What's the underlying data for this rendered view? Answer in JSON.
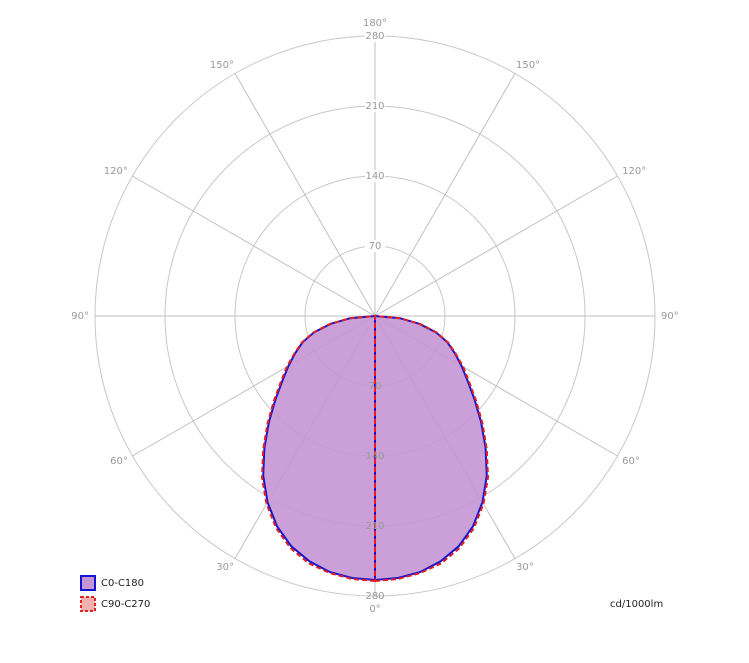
{
  "chart_data": {
    "type": "polar",
    "unit": "cd/1000lm",
    "rlim": [
      0,
      280
    ],
    "rticks": [
      70,
      140,
      210,
      280
    ],
    "angle_ticks": [
      {
        "value": 0,
        "label": "0°"
      },
      {
        "value": 30,
        "label": "30°"
      },
      {
        "value": 60,
        "label": "60°"
      },
      {
        "value": 90,
        "label": "90°"
      },
      {
        "value": 120,
        "label": "120°"
      },
      {
        "value": 150,
        "label": "150°"
      },
      {
        "value": 180,
        "label": "180°"
      }
    ],
    "x": [
      0,
      5,
      10,
      15,
      20,
      25,
      30,
      35,
      40,
      45,
      50,
      55,
      60,
      65,
      70,
      75,
      80,
      85,
      90
    ],
    "series": [
      {
        "name": "C0-C180",
        "color": "#1414d2",
        "fill": "#c596d4",
        "dashed": false,
        "values": [
          264,
          263,
          260,
          254,
          245,
          232,
          215,
          195,
          172,
          150,
          130,
          113,
          100,
          88,
          77,
          63,
          45,
          25,
          0
        ]
      },
      {
        "name": "C90-C270",
        "color": "#e02020",
        "fill": "none",
        "dashed": true,
        "values": [
          265,
          264,
          261,
          256,
          247,
          234,
          217,
          197,
          174,
          152,
          132,
          115,
          102,
          89,
          78,
          64,
          46,
          25,
          0
        ]
      }
    ]
  }
}
